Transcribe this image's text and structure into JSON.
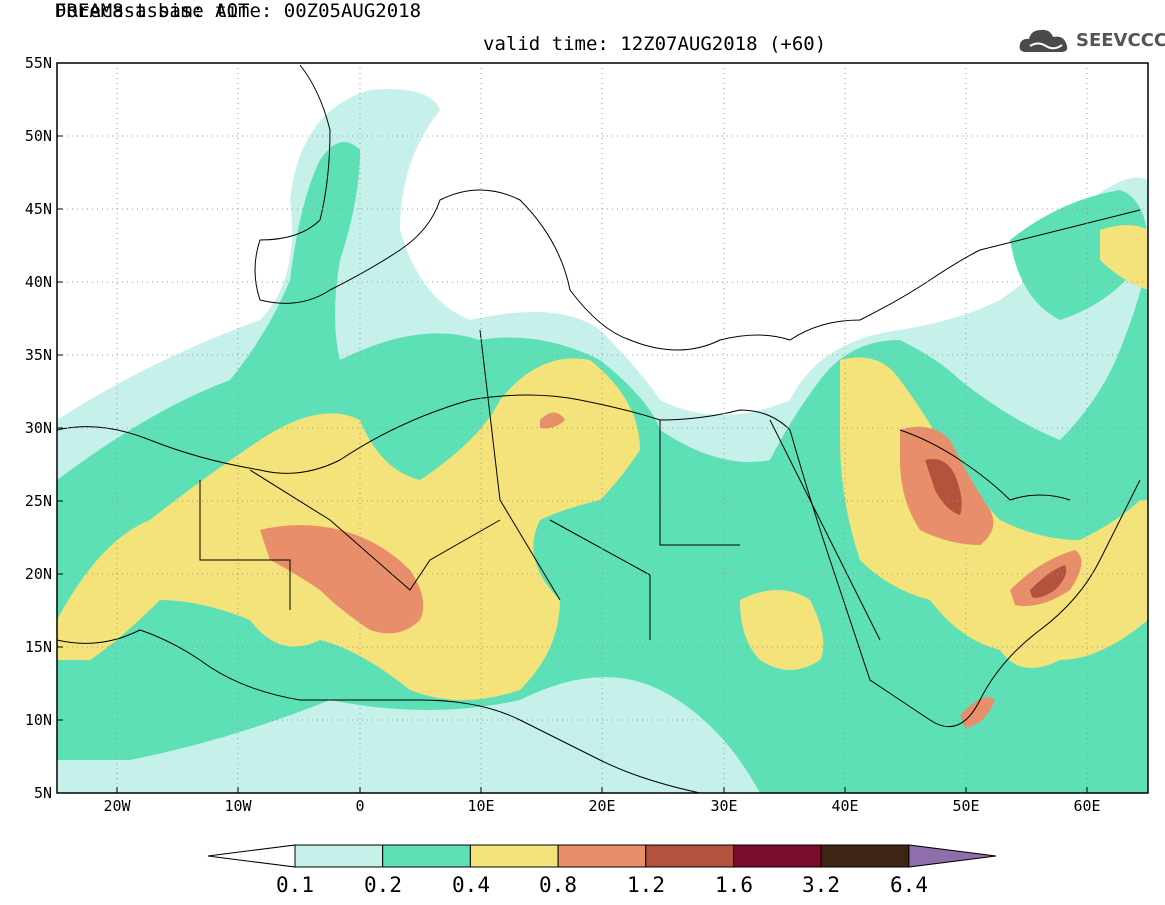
{
  "header": {
    "title_line1": "DREAM8-assim: AOT",
    "title_line2": "Forecast base time: 00Z05AUG2018",
    "valid_time": "valid time: 12Z07AUG2018 (+60)",
    "logo_text": "SEEVCCC",
    "logo_icon": "cloud-logo-icon"
  },
  "axes": {
    "lat_labels": [
      "55N",
      "50N",
      "45N",
      "40N",
      "35N",
      "30N",
      "25N",
      "20N",
      "15N",
      "10N",
      "5N"
    ],
    "lon_labels": [
      "20W",
      "10W",
      "0",
      "10E",
      "20E",
      "30E",
      "40E",
      "50E",
      "60E"
    ]
  },
  "map": {
    "lon_range": [
      -25,
      65
    ],
    "lat_range": [
      5,
      55
    ],
    "colors": {
      "land_line": "#000000",
      "grid": "#999999",
      "c01": "#c6f0ea",
      "c02": "#5ee0b6",
      "c04": "#f3e37a",
      "c08": "#e88e6a",
      "c12": "#b4533d",
      "c16": "#7b0c2c",
      "c32": "#3e2415",
      "c64": "#8e6fab"
    }
  },
  "colorbar": {
    "labels": [
      "0.1",
      "0.2",
      "0.4",
      "0.8",
      "1.2",
      "1.6",
      "3.2",
      "6.4"
    ],
    "colors": [
      "#ffffff",
      "#c6f0ea",
      "#5ee0b6",
      "#f3e37a",
      "#e88e6a",
      "#b4533d",
      "#7b0c2c",
      "#3e2415",
      "#8e6fab"
    ]
  }
}
